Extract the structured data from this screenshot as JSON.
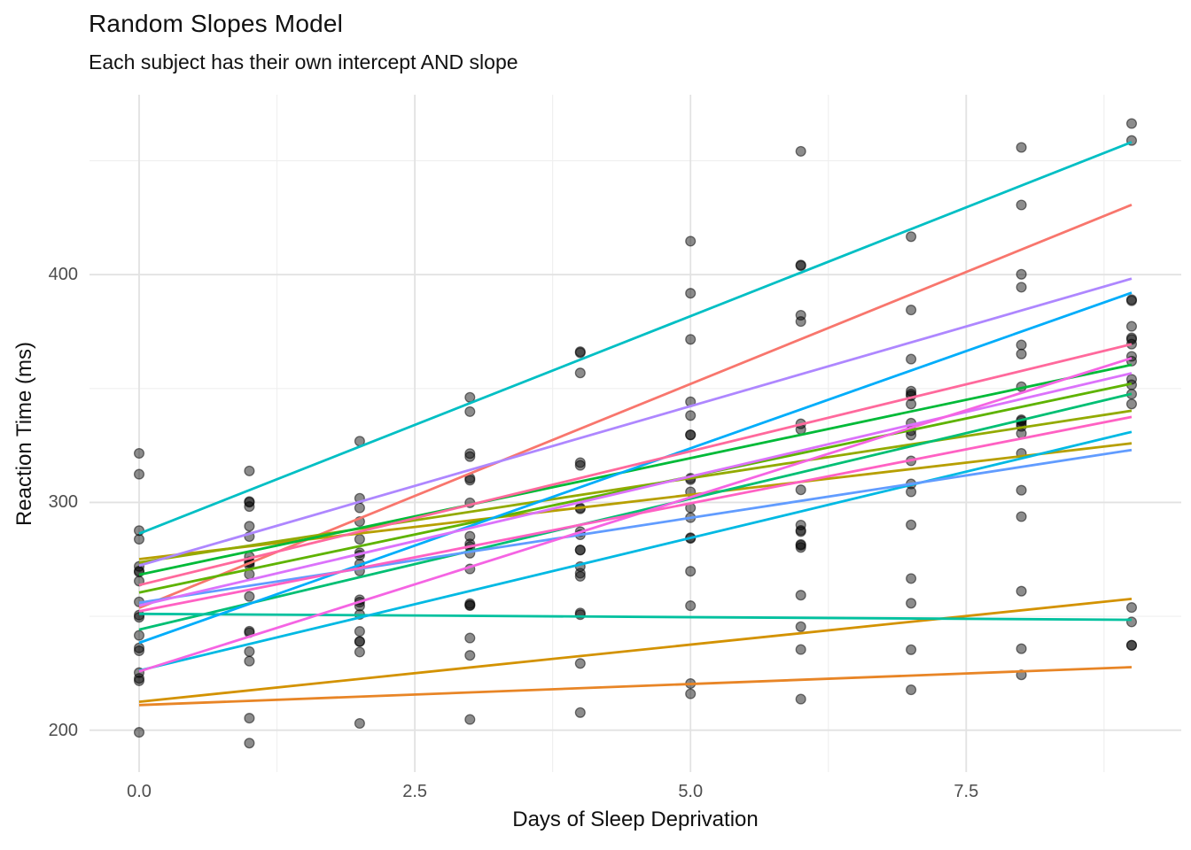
{
  "chart_data": {
    "type": "scatter",
    "title": "Random Slopes Model",
    "subtitle": "Each subject has their own intercept AND slope",
    "xlabel": "Days of Sleep Deprivation",
    "ylabel": "Reaction Time (ms)",
    "legend": "none",
    "grid": "on",
    "xlim": [
      -0.45,
      9.45
    ],
    "ylim": [
      181.6,
      479.0
    ],
    "x_ticks": {
      "values": [
        0,
        2.5,
        5,
        7.5
      ],
      "labels": [
        "0.0",
        "2.5",
        "5.0",
        "7.5"
      ]
    },
    "x_minor_ticks": [
      1.25,
      3.75,
      6.25,
      8.75
    ],
    "y_ticks": {
      "values": [
        200,
        300,
        400
      ],
      "labels": [
        "200",
        "300",
        "400"
      ]
    },
    "y_minor_ticks": [
      250,
      350,
      450
    ],
    "days": [
      0,
      1,
      2,
      3,
      4,
      5,
      6,
      7,
      8,
      9
    ],
    "colors": {
      "grid_major": "#e2e2e2",
      "grid_minor": "#efefef",
      "tick_text": "#4d4d4d",
      "title_text": "#111111",
      "point": "#000000"
    },
    "point_style": {
      "radius": 5.4,
      "fill_opacity": 0.45,
      "stroke_opacity": 0.5,
      "stroke_width": 1.3
    },
    "line_style": {
      "width": 2.8,
      "span_days": [
        0,
        9
      ]
    },
    "subjects": [
      {
        "id": "308",
        "color": "#F8766D",
        "line": {
          "intercept": 253.66,
          "slope": 19.67
        },
        "reactions": [
          249.56,
          258.7,
          250.8,
          321.44,
          356.85,
          414.69,
          382.2,
          290.15,
          430.59,
          466.35
        ]
      },
      {
        "id": "309",
        "color": "#E88526",
        "line": {
          "intercept": 211.01,
          "slope": 1.85
        },
        "reactions": [
          222.73,
          205.27,
          202.98,
          204.71,
          207.72,
          215.96,
          213.63,
          217.73,
          224.3,
          237.31
        ]
      },
      {
        "id": "310",
        "color": "#D39200",
        "line": {
          "intercept": 212.45,
          "slope": 5.02
        },
        "reactions": [
          199.05,
          194.33,
          234.32,
          232.84,
          229.31,
          220.46,
          235.42,
          255.75,
          261.01,
          247.52
        ]
      },
      {
        "id": "330",
        "color": "#B79F00",
        "line": {
          "intercept": 275.09,
          "slope": 5.65
        },
        "reactions": [
          321.54,
          300.4,
          283.86,
          285.13,
          285.8,
          297.59,
          280.24,
          318.26,
          305.35,
          354.05
        ]
      },
      {
        "id": "331",
        "color": "#93AA00",
        "line": {
          "intercept": 273.66,
          "slope": 7.4
        },
        "reactions": [
          287.61,
          285.0,
          301.82,
          320.12,
          316.28,
          293.32,
          290.08,
          334.82,
          293.75,
          371.58
        ]
      },
      {
        "id": "332",
        "color": "#5EB300",
        "line": {
          "intercept": 260.44,
          "slope": 10.19
        },
        "reactions": [
          234.86,
          242.81,
          272.96,
          309.77,
          317.46,
          310.0,
          454.16,
          346.83,
          330.3,
          253.86
        ]
      },
      {
        "id": "333",
        "color": "#00BA38",
        "line": {
          "intercept": 268.25,
          "slope": 10.24
        },
        "reactions": [
          283.84,
          289.56,
          276.77,
          299.81,
          297.17,
          338.17,
          332.03,
          348.84,
          333.36,
          362.04
        ]
      },
      {
        "id": "334",
        "color": "#00BF74",
        "line": {
          "intercept": 244.17,
          "slope": 11.5
        },
        "reactions": [
          265.47,
          276.2,
          243.36,
          254.67,
          279.02,
          284.19,
          305.52,
          331.52,
          335.75,
          377.3
        ]
      },
      {
        "id": "335",
        "color": "#00C19F",
        "line": {
          "intercept": 251.07,
          "slope": -0.29
        },
        "reactions": [
          241.61,
          273.95,
          254.49,
          270.8,
          251.45,
          254.64,
          245.45,
          235.31,
          235.75,
          237.25
        ]
      },
      {
        "id": "337",
        "color": "#00BFC4",
        "line": {
          "intercept": 286.29,
          "slope": 19.1
        },
        "reactions": [
          312.37,
          313.81,
          291.61,
          346.12,
          365.73,
          391.84,
          404.26,
          416.69,
          455.86,
          458.92
        ]
      },
      {
        "id": "349",
        "color": "#00B9E3",
        "line": {
          "intercept": 226.2,
          "slope": 11.64
        },
        "reactions": [
          236.1,
          230.32,
          238.93,
          254.92,
          250.71,
          269.77,
          281.56,
          308.1,
          336.28,
          351.65
        ]
      },
      {
        "id": "350",
        "color": "#00ADFA",
        "line": {
          "intercept": 238.34,
          "slope": 17.08
        },
        "reactions": [
          256.3,
          243.45,
          256.2,
          255.53,
          268.92,
          329.72,
          379.44,
          362.92,
          394.49,
          389.05
        ]
      },
      {
        "id": "351",
        "color": "#619CFF",
        "line": {
          "intercept": 255.98,
          "slope": 7.45
        },
        "reactions": [
          250.53,
          300.06,
          269.89,
          280.59,
          271.83,
          304.63,
          287.75,
          266.6,
          321.54,
          347.57
        ]
      },
      {
        "id": "352",
        "color": "#AE87FF",
        "line": {
          "intercept": 272.27,
          "slope": 14.0
        },
        "reactions": [
          221.68,
          298.19,
          326.88,
          339.88,
          366.19,
          371.58,
          403.93,
          384.49,
          400.15,
          388.54
        ]
      },
      {
        "id": "369",
        "color": "#DB72FB",
        "line": {
          "intercept": 254.68,
          "slope": 11.34
        },
        "reactions": [
          271.92,
          268.44,
          257.24,
          277.71,
          297.6,
          310.63,
          287.17,
          329.61,
          334.48,
          343.22
        ]
      },
      {
        "id": "370",
        "color": "#F564E3",
        "line": {
          "intercept": 225.79,
          "slope": 15.29
        },
        "reactions": [
          225.26,
          234.52,
          238.9,
          240.47,
          267.54,
          344.19,
          281.15,
          347.59,
          365.16,
          372.23
        ]
      },
      {
        "id": "371",
        "color": "#FF61C3",
        "line": {
          "intercept": 252.21,
          "slope": 9.48
        },
        "reactions": [
          269.88,
          272.44,
          277.9,
          281.79,
          279.17,
          284.51,
          259.27,
          304.63,
          350.78,
          369.47
        ]
      },
      {
        "id": "372",
        "color": "#FF699C",
        "line": {
          "intercept": 263.72,
          "slope": 11.75
        },
        "reactions": [
          269.41,
          273.47,
          297.6,
          310.63,
          287.17,
          329.61,
          334.48,
          343.22,
          369.14,
          364.12
        ]
      }
    ]
  }
}
